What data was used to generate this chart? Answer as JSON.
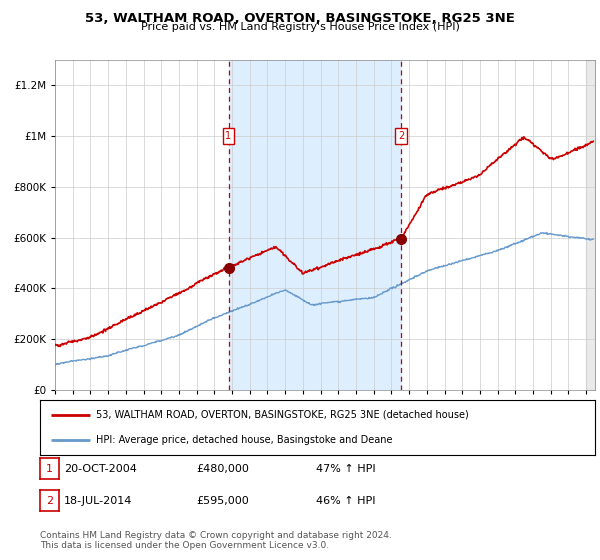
{
  "title": "53, WALTHAM ROAD, OVERTON, BASINGSTOKE, RG25 3NE",
  "subtitle": "Price paid vs. HM Land Registry's House Price Index (HPI)",
  "background_color": "#ffffff",
  "plot_bg_color": "#ffffff",
  "shaded_region_color": "#ddeeff",
  "ylim": [
    0,
    1300000
  ],
  "yticks": [
    0,
    200000,
    400000,
    600000,
    800000,
    1000000,
    1200000
  ],
  "ytick_labels": [
    "£0",
    "£200K",
    "£400K",
    "£600K",
    "£800K",
    "£1M",
    "£1.2M"
  ],
  "sale1_date": "20-OCT-2004",
  "sale1_price": 480000,
  "sale1_label": "1",
  "sale1_hpi": "47% ↑ HPI",
  "sale1_x": 2004.8,
  "sale1_y": 480000,
  "sale2_date": "18-JUL-2014",
  "sale2_price": 595000,
  "sale2_label": "2",
  "sale2_hpi": "46% ↑ HPI",
  "sale2_x": 2014.55,
  "sale2_y": 595000,
  "legend_property": "53, WALTHAM ROAD, OVERTON, BASINGSTOKE, RG25 3NE (detached house)",
  "legend_hpi": "HPI: Average price, detached house, Basingstoke and Deane",
  "footer": "Contains HM Land Registry data © Crown copyright and database right 2024.\nThis data is licensed under the Open Government Licence v3.0.",
  "property_line_color": "#cc0000",
  "hpi_line_color": "#6699cc",
  "dashed_line_color": "#cc0000",
  "sale_marker_color": "#880000",
  "xmin": 1995,
  "xmax": 2025.5,
  "box_marker_color": "#cc0000",
  "grid_color": "#cccccc"
}
